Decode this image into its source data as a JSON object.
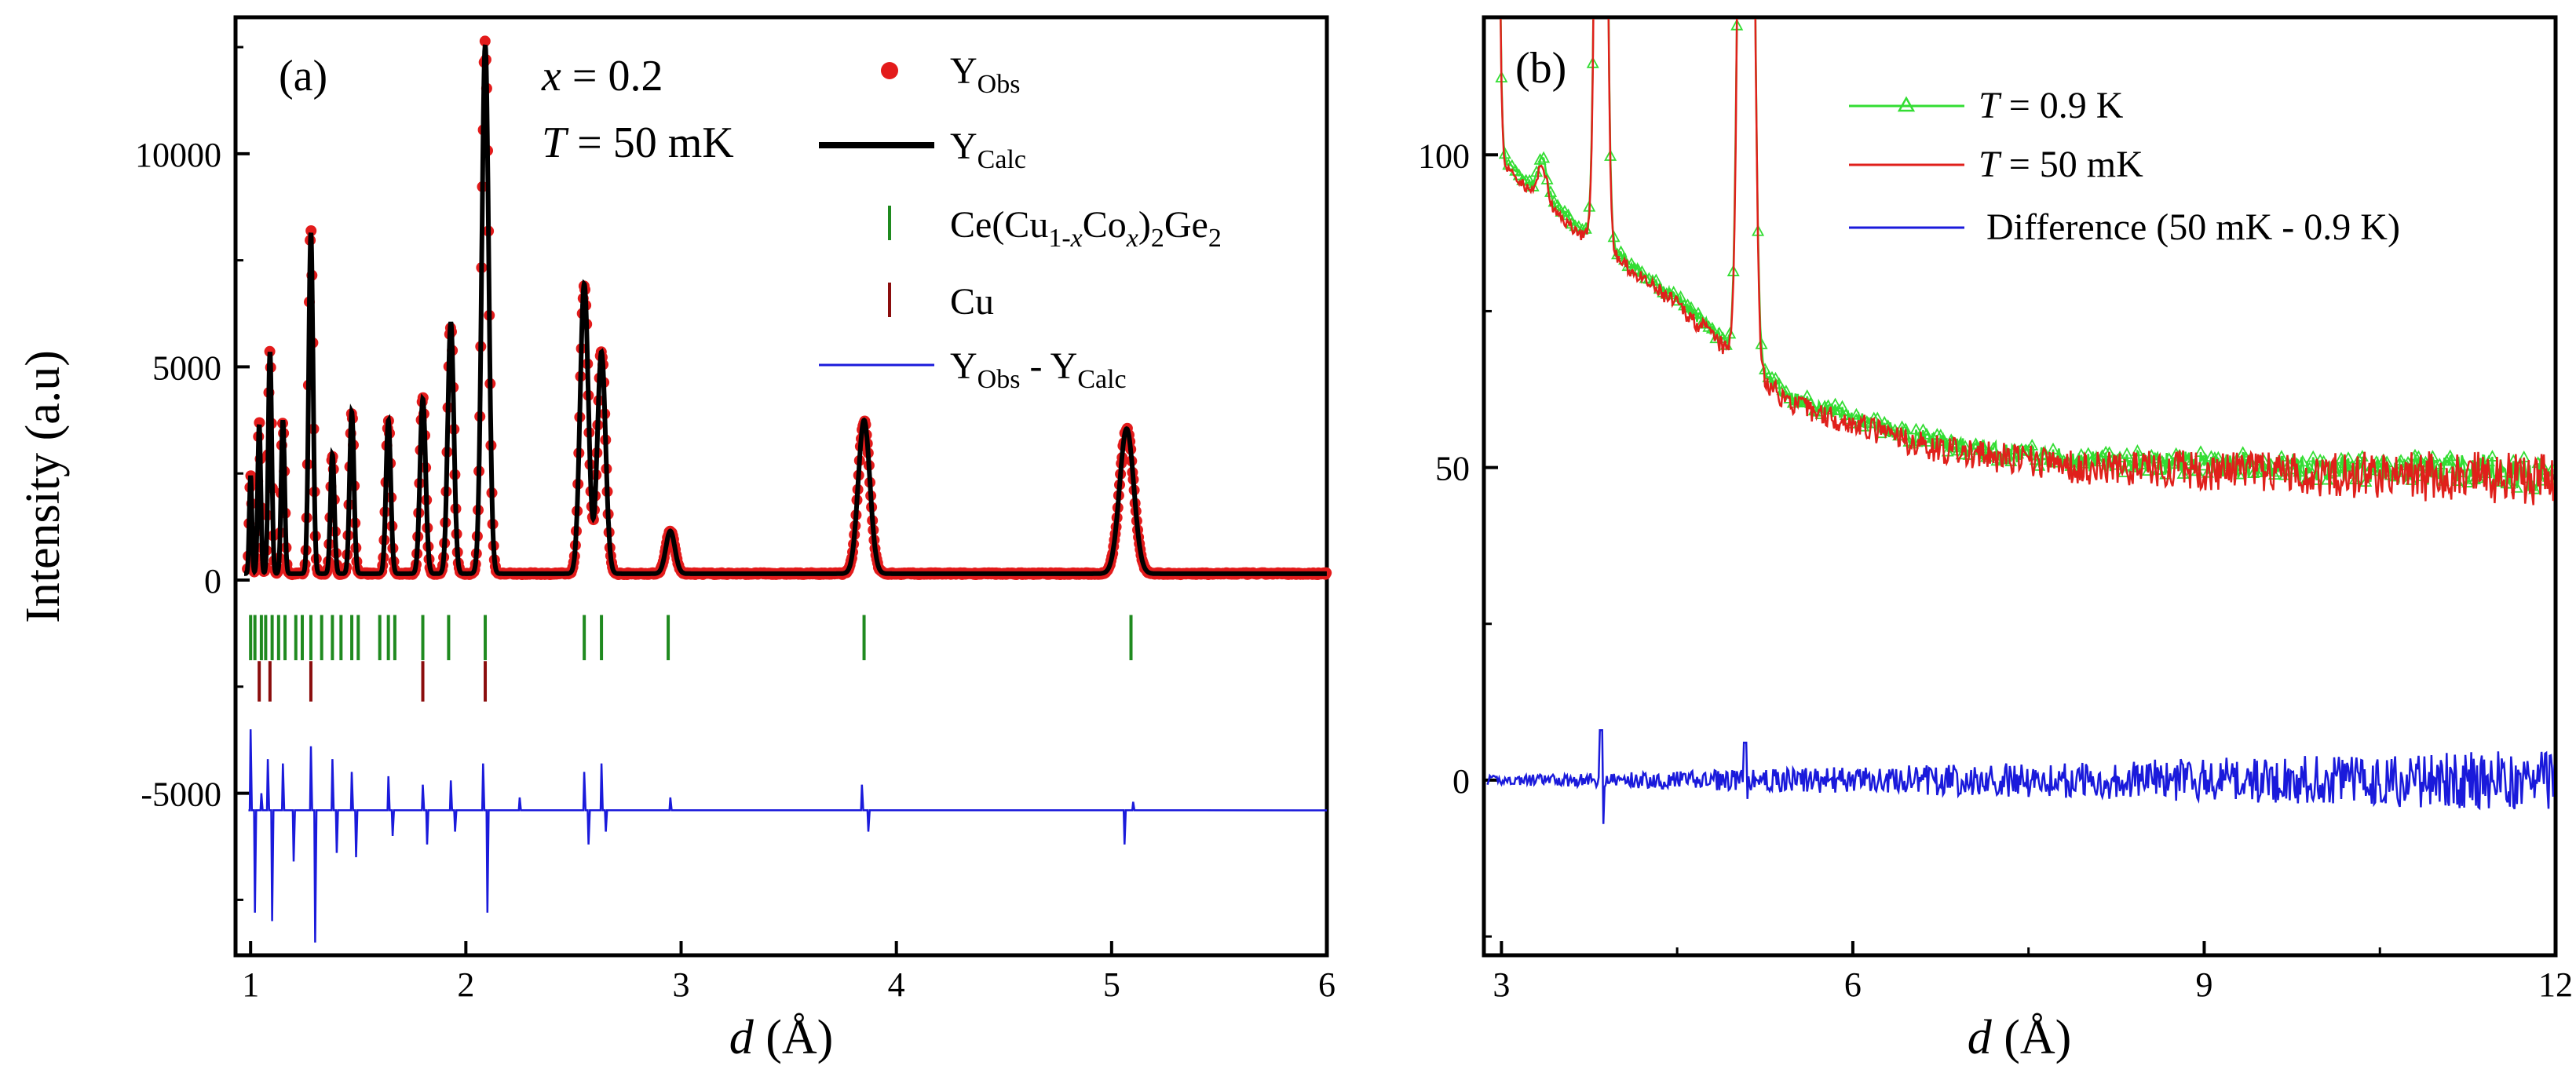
{
  "chart_data": [
    {
      "panel": "(a)",
      "type": "line",
      "xlabel": "d (Å)",
      "ylabel": "Intensity (a.u)",
      "xlim": [
        0.93,
        6.0
      ],
      "ylim": [
        -8800,
        13200
      ],
      "xticks": [
        1,
        2,
        3,
        4,
        5,
        6
      ],
      "xtick_labels": [
        "1",
        "2",
        "3",
        "4",
        "5",
        "6"
      ],
      "yticks": [
        -5000,
        0,
        5000,
        10000
      ],
      "ytick_labels": [
        "-5000",
        "0",
        "5000",
        "10000"
      ],
      "annotation_lines": [
        "x = 0.2",
        "T = 50 mK"
      ],
      "legend": {
        "y_obs": {
          "main": "Y",
          "sub": "Obs"
        },
        "y_calc": {
          "main": "Y",
          "sub": "Calc"
        },
        "phase1": "Ce(Cu1-xCox)2Ge2",
        "phase2": "Cu",
        "diff": {
          "main": "Y",
          "sub1": "Obs",
          "dash": " - ",
          "main2": "Y",
          "sub2": "Calc"
        }
      },
      "background": 150,
      "peaks": [
        {
          "d": 1.0,
          "I": 2300,
          "w": 0.006
        },
        {
          "d": 1.04,
          "I": 3500,
          "w": 0.007
        },
        {
          "d": 1.09,
          "I": 5200,
          "w": 0.008
        },
        {
          "d": 1.15,
          "I": 3600,
          "w": 0.008
        },
        {
          "d": 1.28,
          "I": 8000,
          "w": 0.01
        },
        {
          "d": 1.38,
          "I": 2800,
          "w": 0.009
        },
        {
          "d": 1.47,
          "I": 3800,
          "w": 0.01
        },
        {
          "d": 1.64,
          "I": 3600,
          "w": 0.011
        },
        {
          "d": 1.8,
          "I": 4100,
          "w": 0.013
        },
        {
          "d": 1.93,
          "I": 5900,
          "w": 0.014
        },
        {
          "d": 2.09,
          "I": 12400,
          "w": 0.016
        },
        {
          "d": 2.55,
          "I": 6800,
          "w": 0.019
        },
        {
          "d": 2.63,
          "I": 5200,
          "w": 0.019
        },
        {
          "d": 2.95,
          "I": 1000,
          "w": 0.021
        },
        {
          "d": 3.85,
          "I": 3600,
          "w": 0.027
        },
        {
          "d": 5.07,
          "I": 3400,
          "w": 0.033
        }
      ],
      "ticks_phase1": [
        1.0,
        1.02,
        1.05,
        1.07,
        1.1,
        1.13,
        1.16,
        1.21,
        1.24,
        1.28,
        1.33,
        1.38,
        1.42,
        1.47,
        1.5,
        1.6,
        1.64,
        1.67,
        1.8,
        1.92,
        2.09,
        2.55,
        2.63,
        2.94,
        3.85,
        5.09
      ],
      "ticks_phase2": [
        1.04,
        1.09,
        1.28,
        1.8,
        2.09
      ],
      "diff_offset": -5400,
      "diff_series": [
        [
          1.0,
          -3500
        ],
        [
          1.02,
          -7800
        ],
        [
          1.05,
          -5000
        ],
        [
          1.08,
          -4200
        ],
        [
          1.1,
          -8000
        ],
        [
          1.15,
          -4300
        ],
        [
          1.2,
          -6600
        ],
        [
          1.28,
          -3900
        ],
        [
          1.3,
          -8500
        ],
        [
          1.38,
          -4200
        ],
        [
          1.4,
          -6400
        ],
        [
          1.47,
          -4500
        ],
        [
          1.49,
          -6500
        ],
        [
          1.64,
          -4600
        ],
        [
          1.66,
          -6000
        ],
        [
          1.8,
          -4800
        ],
        [
          1.82,
          -6200
        ],
        [
          1.93,
          -4700
        ],
        [
          1.95,
          -5900
        ],
        [
          2.08,
          -4300
        ],
        [
          2.1,
          -7800
        ],
        [
          2.25,
          -5100
        ],
        [
          2.55,
          -4500
        ],
        [
          2.57,
          -6200
        ],
        [
          2.63,
          -4300
        ],
        [
          2.65,
          -5900
        ],
        [
          2.95,
          -5100
        ],
        [
          3.84,
          -4800
        ],
        [
          3.87,
          -5900
        ],
        [
          5.06,
          -6200
        ],
        [
          5.1,
          -5200
        ]
      ]
    },
    {
      "panel": "(b)",
      "type": "line",
      "xlabel": "d (Å)",
      "xlim": [
        2.85,
        12.0
      ],
      "ylim": [
        -28,
        122
      ],
      "xticks": [
        3,
        6,
        9,
        12
      ],
      "xtick_labels": [
        "3",
        "6",
        "9",
        "12"
      ],
      "yticks": [
        0,
        50,
        100
      ],
      "ytick_labels": [
        "0",
        "50",
        "100"
      ],
      "series": [
        {
          "name": "T = 0.9 K",
          "color": "#33dd33",
          "marker": "triangle-open",
          "offset": 1.0
        },
        {
          "name": "T = 50 mK",
          "color": "#e0201b",
          "offset": 0.0
        },
        {
          "name": "Difference (50 mK - 0.9 K)",
          "color": "#1a1adb"
        }
      ],
      "legend": {
        "t09": {
          "T": "T",
          "rest": " = 0.9 K"
        },
        "t50": {
          "T": "T",
          "rest": " = 50 mK"
        },
        "diff": "Difference (50 mK - 0.9 K)"
      },
      "baseline": [
        [
          2.9,
          100
        ],
        [
          3.1,
          97
        ],
        [
          3.3,
          93
        ],
        [
          3.5,
          90
        ],
        [
          3.7,
          87
        ],
        [
          3.85,
          86
        ],
        [
          3.95,
          84
        ],
        [
          4.2,
          80
        ],
        [
          4.5,
          76
        ],
        [
          4.8,
          71
        ],
        [
          4.95,
          68
        ],
        [
          5.2,
          64
        ],
        [
          5.5,
          60
        ],
        [
          6.0,
          57
        ],
        [
          6.5,
          54
        ],
        [
          7.0,
          52
        ],
        [
          7.5,
          51
        ],
        [
          8.0,
          50
        ],
        [
          9.0,
          49.5
        ],
        [
          10.0,
          49
        ],
        [
          11.0,
          48.5
        ],
        [
          12.0,
          48
        ]
      ],
      "peaks": [
        {
          "d": 2.93,
          "I": 200,
          "w": 0.03
        },
        {
          "d": 3.35,
          "I": 6,
          "w": 0.04
        },
        {
          "d": 3.85,
          "I": 200,
          "w": 0.035
        },
        {
          "d": 5.09,
          "I": 260,
          "w": 0.045
        }
      ],
      "diff_spikes": [
        {
          "d": 3.85,
          "up": 8,
          "down": -7
        },
        {
          "d": 5.08,
          "up": 6,
          "down": -3
        }
      ]
    }
  ],
  "colors": {
    "obs": "#e31b1b",
    "calc": "#000000",
    "phase1": "#1f8a1f",
    "phase2": "#8b0d0d",
    "diff": "#1a1adb"
  }
}
